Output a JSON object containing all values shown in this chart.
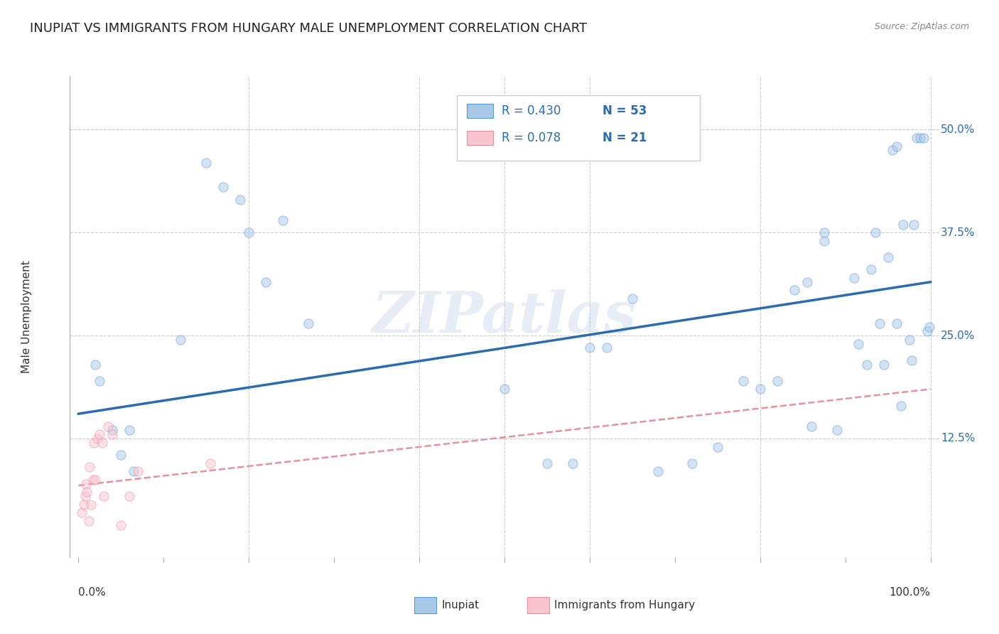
{
  "title": "INUPIAT VS IMMIGRANTS FROM HUNGARY MALE UNEMPLOYMENT CORRELATION CHART",
  "source": "Source: ZipAtlas.com",
  "ylabel": "Male Unemployment",
  "ytick_labels": [
    "12.5%",
    "25.0%",
    "37.5%",
    "50.0%"
  ],
  "ytick_values": [
    0.125,
    0.25,
    0.375,
    0.5
  ],
  "xlim": [
    -0.01,
    1.01
  ],
  "ylim": [
    -0.02,
    0.565
  ],
  "watermark": "ZIPatlas",
  "legend_blue_r": "R = 0.430",
  "legend_blue_n": "N = 53",
  "legend_pink_r": "R = 0.078",
  "legend_pink_n": "N = 21",
  "legend_label_blue": "Inupiat",
  "legend_label_pink": "Immigrants from Hungary",
  "blue_color": "#a8c8e8",
  "blue_edge_color": "#5b9bd5",
  "blue_line_color": "#2b6cb0",
  "pink_color": "#f9c6d0",
  "pink_edge_color": "#e88fa0",
  "pink_line_color": "#e06080",
  "blue_scatter_x": [
    0.02,
    0.025,
    0.04,
    0.05,
    0.06,
    0.065,
    0.12,
    0.15,
    0.17,
    0.19,
    0.2,
    0.22,
    0.24,
    0.27,
    0.5,
    0.55,
    0.58,
    0.6,
    0.62,
    0.65,
    0.68,
    0.72,
    0.75,
    0.78,
    0.8,
    0.82,
    0.84,
    0.855,
    0.86,
    0.875,
    0.875,
    0.89,
    0.91,
    0.915,
    0.925,
    0.93,
    0.935,
    0.94,
    0.945,
    0.95,
    0.955,
    0.96,
    0.96,
    0.965,
    0.968,
    0.975,
    0.978,
    0.98,
    0.984,
    0.988,
    0.992,
    0.996,
    0.999
  ],
  "blue_scatter_y": [
    0.215,
    0.195,
    0.135,
    0.105,
    0.135,
    0.085,
    0.245,
    0.46,
    0.43,
    0.415,
    0.375,
    0.315,
    0.39,
    0.265,
    0.185,
    0.095,
    0.095,
    0.235,
    0.235,
    0.295,
    0.085,
    0.095,
    0.115,
    0.195,
    0.185,
    0.195,
    0.305,
    0.315,
    0.14,
    0.365,
    0.375,
    0.135,
    0.32,
    0.24,
    0.215,
    0.33,
    0.375,
    0.265,
    0.215,
    0.345,
    0.475,
    0.48,
    0.265,
    0.165,
    0.385,
    0.245,
    0.22,
    0.385,
    0.49,
    0.49,
    0.49,
    0.255,
    0.26
  ],
  "pink_scatter_x": [
    0.004,
    0.006,
    0.008,
    0.009,
    0.01,
    0.012,
    0.013,
    0.015,
    0.017,
    0.018,
    0.02,
    0.022,
    0.025,
    0.028,
    0.03,
    0.035,
    0.04,
    0.05,
    0.06,
    0.07,
    0.155
  ],
  "pink_scatter_y": [
    0.035,
    0.045,
    0.055,
    0.07,
    0.06,
    0.025,
    0.09,
    0.045,
    0.075,
    0.12,
    0.075,
    0.125,
    0.13,
    0.12,
    0.055,
    0.14,
    0.13,
    0.02,
    0.055,
    0.085,
    0.095
  ],
  "blue_line_x0": 0.0,
  "blue_line_y0": 0.155,
  "blue_line_x1": 1.0,
  "blue_line_y1": 0.315,
  "pink_line_x0": 0.0,
  "pink_line_y0": 0.068,
  "pink_line_x1": 1.0,
  "pink_line_y1": 0.185,
  "background_color": "#ffffff",
  "grid_color": "#cccccc",
  "title_fontsize": 13,
  "axis_label_fontsize": 11,
  "tick_fontsize": 11,
  "scatter_size": 90,
  "scatter_alpha": 0.5
}
